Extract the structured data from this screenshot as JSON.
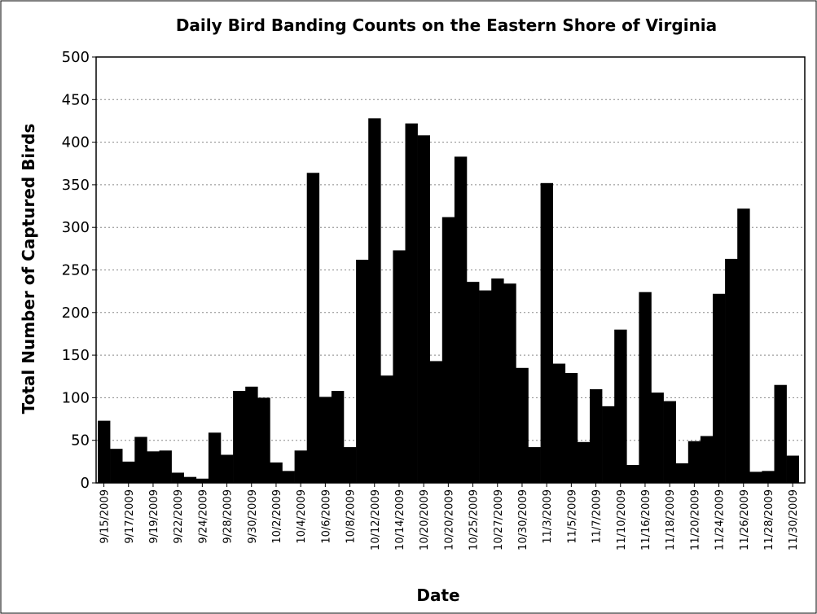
{
  "chart_data": {
    "type": "bar",
    "title": "Daily Bird Banding Counts on the Eastern Shore of Virginia",
    "x_label": "Date",
    "y_label": "Total Number of Captured Birds",
    "categories": [
      "9/15/2009",
      null,
      "9/17/2009",
      null,
      "9/19/2009",
      null,
      "9/22/2009",
      null,
      "9/24/2009",
      null,
      "9/28/2009",
      null,
      "9/30/2009",
      null,
      "10/2/2009",
      null,
      "10/4/2009",
      null,
      "10/6/2009",
      null,
      "10/8/2009",
      null,
      "10/12/2009",
      null,
      "10/14/2009",
      null,
      "10/20/2009",
      null,
      "10/20/2009",
      null,
      "10/25/2009",
      null,
      "10/27/2009",
      null,
      "10/30/2009",
      null,
      "11/3/2009",
      null,
      "11/5/2009",
      null,
      "11/7/2009",
      null,
      "11/10/2009",
      null,
      "11/16/2009",
      null,
      "11/18/2009",
      null,
      "11/20/2009",
      null,
      "11/24/2009",
      null,
      "11/26/2009",
      null,
      "11/28/2009",
      null,
      "11/30/2009"
    ],
    "values": [
      73,
      40,
      25,
      54,
      37,
      38,
      12,
      7,
      5,
      59,
      33,
      108,
      113,
      100,
      24,
      14,
      38,
      364,
      101,
      108,
      42,
      262,
      428,
      126,
      273,
      422,
      408,
      143,
      312,
      383,
      236,
      226,
      240,
      234,
      135,
      42,
      352,
      140,
      129,
      48,
      110,
      90,
      180,
      21,
      224,
      106,
      96,
      23,
      49,
      55,
      222,
      263,
      322,
      13,
      14,
      115,
      32
    ],
    "color": "#000000",
    "ylim": [
      0,
      500
    ],
    "yticks": [
      0,
      50,
      100,
      150,
      200,
      250,
      300,
      350,
      400,
      450,
      500
    ],
    "grid": true
  }
}
